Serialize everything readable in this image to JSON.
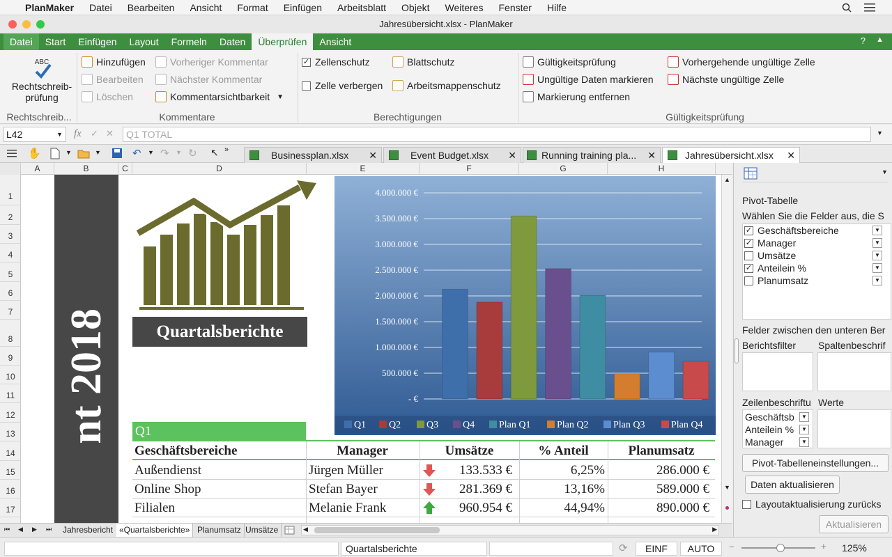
{
  "menubar": {
    "app": "PlanMaker",
    "items": [
      "Datei",
      "Bearbeiten",
      "Ansicht",
      "Format",
      "Einfügen",
      "Arbeitsblatt",
      "Objekt",
      "Weiteres",
      "Fenster",
      "Hilfe"
    ]
  },
  "window": {
    "title": "Jahresübersicht.xlsx - PlanMaker"
  },
  "ribbon": {
    "tabs": [
      "Datei",
      "Start",
      "Einfügen",
      "Layout",
      "Formeln",
      "Daten",
      "Überprüfen",
      "Ansicht"
    ],
    "active_tab": "Überprüfen",
    "spell": {
      "label1": "Rechtschreib-",
      "label2": "prüfung",
      "abc": "ABC"
    },
    "comments": {
      "add": "Hinzufügen",
      "edit": "Bearbeiten",
      "delete": "Löschen",
      "prev": "Vorheriger Kommentar",
      "next": "Nächster Kommentar",
      "visibility": "Kommentarsichtbarkeit"
    },
    "permissions": {
      "cell_protect": "Zellenschutz",
      "hide_cell": "Zelle verbergen",
      "sheet_protect": "Blattschutz",
      "workbook_protect": "Arbeitsmappenschutz"
    },
    "validation": {
      "check": "Gültigkeitsprüfung",
      "mark_invalid": "Ungültige Daten markieren",
      "remove_mark": "Markierung entfernen",
      "prev_invalid": "Vorhergehende ungültige Zelle",
      "next_invalid": "Nächste ungültige Zelle"
    },
    "groups": [
      "Rechtschreib...",
      "Kommentare",
      "Berechtigungen",
      "Gültigkeitsprüfung"
    ]
  },
  "formula": {
    "cell_ref": "L42",
    "content": "Q1 TOTAL"
  },
  "doc_tabs": [
    {
      "name": "Businessplan.xlsx",
      "active": false
    },
    {
      "name": "Event Budget.xlsx",
      "active": false
    },
    {
      "name": "Running training pla...",
      "active": false
    },
    {
      "name": "Jahresübersicht.xlsx",
      "active": true
    }
  ],
  "columns": [
    "A",
    "B",
    "C",
    "D",
    "E",
    "F",
    "G",
    "H"
  ],
  "rows": [
    "1",
    "2",
    "3",
    "4",
    "5",
    "6",
    "7",
    "8",
    "9",
    "10",
    "11",
    "12",
    "13",
    "14",
    "15",
    "16",
    "17"
  ],
  "sheet": {
    "vertical_title": "nt 2018",
    "banner": "Quartalsberichte",
    "section": "Q1",
    "table": {
      "headers": [
        "Geschäftsbereiche",
        "Manager",
        "Umsätze",
        "% Anteil",
        "Planumsatz"
      ],
      "rows": [
        {
          "area": "Außendienst",
          "manager": "Jürgen Müller",
          "trend": "down",
          "sales": "133.533 €",
          "share": "6,25%",
          "plan": "286.000 €"
        },
        {
          "area": "Online Shop",
          "manager": "Stefan Bayer",
          "trend": "down",
          "sales": "281.369 €",
          "share": "13,16%",
          "plan": "589.000 €"
        },
        {
          "area": "Filialen",
          "manager": "Melanie Frank",
          "trend": "up",
          "sales": "960.954 €",
          "share": "44,94%",
          "plan": "890.000 €"
        }
      ]
    }
  },
  "chart_data": {
    "type": "bar",
    "categories": [
      "Q1",
      "Q2",
      "Q3",
      "Q4",
      "Plan Q1",
      "Plan Q2",
      "Plan Q3",
      "Plan Q4"
    ],
    "values": [
      2130000,
      1880000,
      3550000,
      2530000,
      2010000,
      490000,
      910000,
      730000
    ],
    "colors": [
      "#3f6faa",
      "#a83b3b",
      "#7f9a3d",
      "#6a4f8e",
      "#3f8da3",
      "#d47d2e",
      "#5b8dd0",
      "#c94a4a"
    ],
    "ylim": [
      0,
      4000000
    ],
    "yticks": [
      "- €",
      "500.000 €",
      "1.000.000 €",
      "1.500.000 €",
      "2.000.000 €",
      "2.500.000 €",
      "3.000.000 €",
      "3.500.000 €",
      "4.000.000 €"
    ],
    "legend": "bottom",
    "grid": true
  },
  "pivot": {
    "title": "Pivot-Tabelle",
    "choose": "Wählen Sie die Felder aus, die S",
    "fields": [
      {
        "label": "Geschäftsbereiche",
        "checked": true
      },
      {
        "label": "Manager",
        "checked": true
      },
      {
        "label": "Umsätze",
        "checked": false
      },
      {
        "label": "Anteilein %",
        "checked": true
      },
      {
        "label": "Planumsatz",
        "checked": false
      }
    ],
    "between": "Felder zwischen den unteren Ber",
    "report_filter": "Berichtsfilter",
    "col_labels": "Spaltenbeschrif",
    "row_labels": "Zeilenbeschriftu",
    "values_label": "Werte",
    "row_items": [
      "Geschäftsb",
      "Anteilein %",
      "Manager"
    ],
    "settings_btn": "Pivot-Tabelleneinstellungen...",
    "refresh_btn": "Daten aktualisieren",
    "defer": "Layoutaktualisierung zurücks",
    "update_btn": "Aktualisieren"
  },
  "sheet_tabs": [
    "Jahresbericht",
    "«Quartalsberichte»",
    "Planumsatz",
    "Umsätze"
  ],
  "status": {
    "sheet": "Quartalsberichte",
    "mode1": "EINF",
    "mode2": "AUTO",
    "zoom": "125%"
  }
}
